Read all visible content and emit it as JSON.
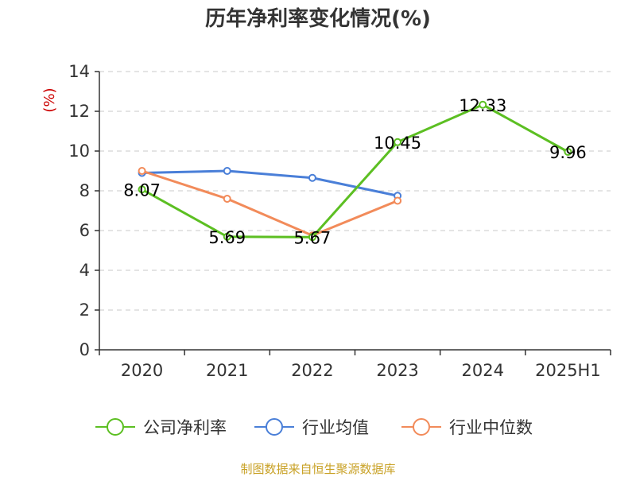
{
  "chart_data": {
    "type": "line",
    "title": "历年净利率变化情况(%)",
    "ylabel": "(%)",
    "xlabel": "",
    "categories": [
      "2020",
      "2021",
      "2022",
      "2023",
      "2024",
      "2025H1"
    ],
    "y_ticks": [
      "0",
      "2",
      "4",
      "6",
      "8",
      "10",
      "12",
      "14"
    ],
    "ylim": [
      0,
      14
    ],
    "grid": true,
    "legend_position": "bottom",
    "series": [
      {
        "name": "公司净利率",
        "color": "#5cbf22",
        "values": [
          8.07,
          5.69,
          5.67,
          10.45,
          12.33,
          9.96
        ],
        "labels": [
          "8.07",
          "5.69",
          "5.67",
          "10.45",
          "12.33",
          "9.96"
        ]
      },
      {
        "name": "行业均值",
        "color": "#4a7fd8",
        "values": [
          8.9,
          9.0,
          8.65,
          7.75,
          null,
          null
        ]
      },
      {
        "name": "行业中位数",
        "color": "#f28b5a",
        "values": [
          9.0,
          7.6,
          5.75,
          7.5,
          null,
          null
        ]
      }
    ],
    "source": "制图数据来自恒生聚源数据库"
  }
}
